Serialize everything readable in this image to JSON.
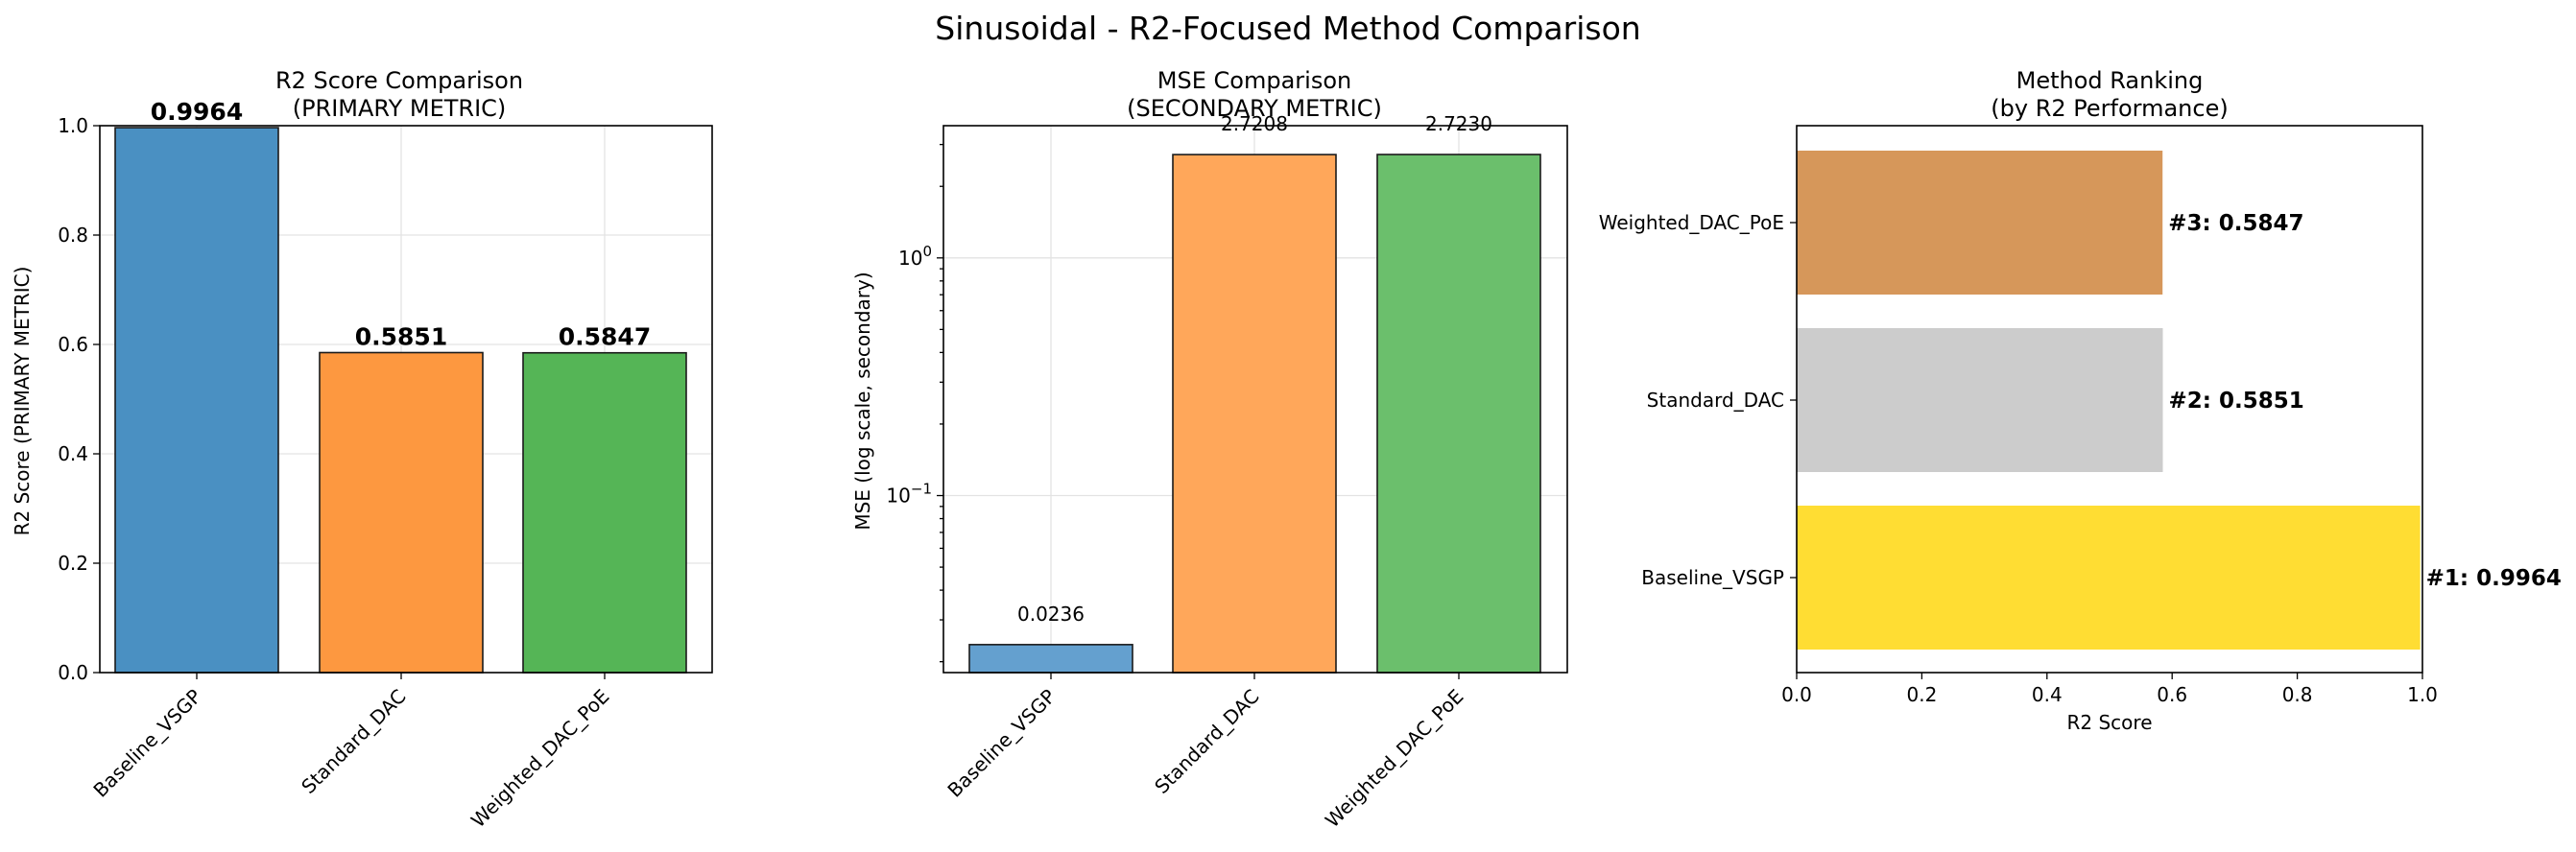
{
  "figure": {
    "suptitle": "Sinusoidal - R2-Focused Method Comparison"
  },
  "chart_data": [
    {
      "type": "bar",
      "title_line1": "R2 Score Comparison",
      "title_line2": "(PRIMARY METRIC)",
      "xlabel": "",
      "ylabel": "R2 Score (PRIMARY METRIC)",
      "categories": [
        "Baseline_VSGP",
        "Standard_DAC",
        "Weighted_DAC_PoE"
      ],
      "values": [
        0.9964,
        0.5851,
        0.5847
      ],
      "value_labels": [
        "0.9964",
        "0.5851",
        "0.5847"
      ],
      "ylim": [
        0,
        1
      ],
      "yticks": [
        0.0,
        0.2,
        0.4,
        0.6,
        0.8,
        1.0
      ],
      "ytick_labels": [
        "0.0",
        "0.2",
        "0.4",
        "0.6",
        "0.8",
        "1.0"
      ],
      "colors": [
        "#4a90c2",
        "#fd9840",
        "#55b556"
      ],
      "grid": true
    },
    {
      "type": "bar",
      "title_line1": "MSE Comparison",
      "title_line2": "(SECONDARY METRIC)",
      "xlabel": "",
      "ylabel": "MSE (log scale, secondary)",
      "yscale": "log",
      "categories": [
        "Baseline_VSGP",
        "Standard_DAC",
        "Weighted_DAC_PoE"
      ],
      "values": [
        0.0236,
        2.7208,
        2.723
      ],
      "value_labels": [
        "0.0236",
        "2.7208",
        "2.7230"
      ],
      "ylim": [
        0.018,
        3.6
      ],
      "ytick_major": [
        {
          "value": 0.1,
          "base": "10",
          "exp": "−1"
        },
        {
          "value": 1,
          "base": "10",
          "exp": "0"
        }
      ],
      "colors": [
        "#64a0cf",
        "#ffa75a",
        "#6bbf6c"
      ],
      "grid": true
    },
    {
      "type": "bar",
      "orientation": "horizontal",
      "title_line1": "Method Ranking",
      "title_line2": "(by R2 Performance)",
      "xlabel": "R2 Score",
      "ylabel": "",
      "categories": [
        "Baseline_VSGP",
        "Standard_DAC",
        "Weighted_DAC_PoE"
      ],
      "values": [
        0.9964,
        0.5851,
        0.5847
      ],
      "value_labels": [
        "#1: 0.9964",
        "#2: 0.5851",
        "#3: 0.5847"
      ],
      "xlim": [
        0,
        1
      ],
      "xticks": [
        0.0,
        0.2,
        0.4,
        0.6,
        0.8,
        1.0
      ],
      "xtick_labels": [
        "0.0",
        "0.2",
        "0.4",
        "0.6",
        "0.8",
        "1.0"
      ],
      "colors": [
        "#ffdd33",
        "#cccccc",
        "#d6975a"
      ],
      "grid": false
    }
  ]
}
